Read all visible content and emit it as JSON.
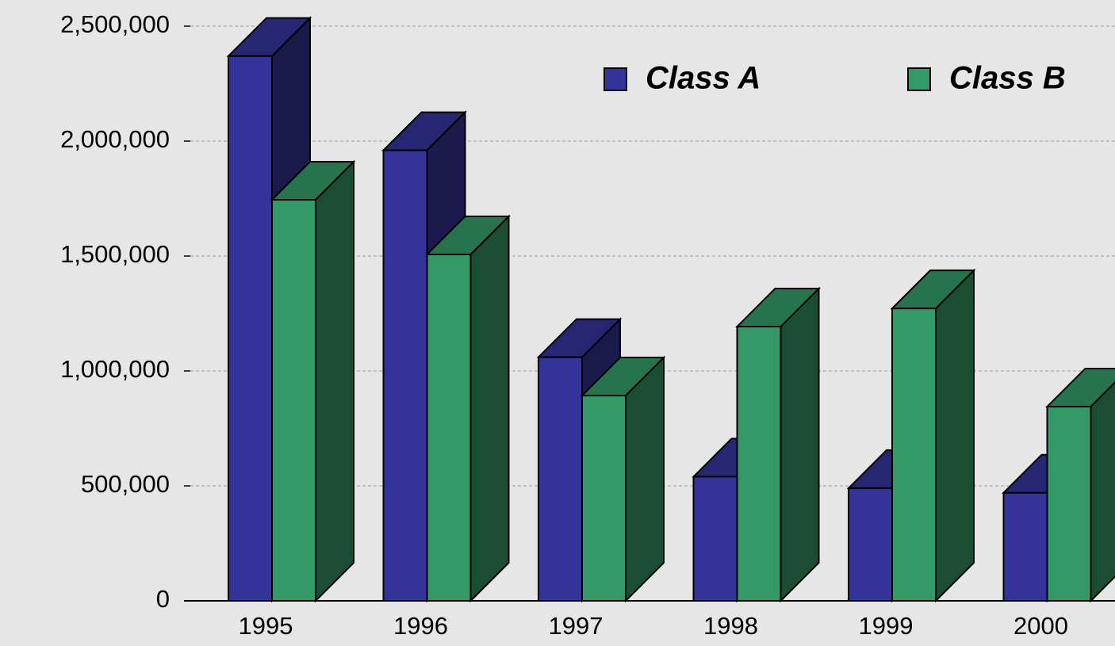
{
  "chart_data": {
    "type": "bar3d",
    "categories": [
      "1995",
      "1996",
      "1997",
      "1998",
      "1999",
      "2000"
    ],
    "series": [
      {
        "name": "Class A",
        "color": "#333399",
        "values": [
          2370000,
          1960000,
          1060000,
          540000,
          490000,
          470000
        ]
      },
      {
        "name": "Class B",
        "color": "#339966",
        "values": [
          1745000,
          1507000,
          893000,
          1193000,
          1272000,
          845000
        ]
      }
    ],
    "ylim": [
      0,
      2500000
    ],
    "yticks": [
      0,
      {
        "value": 500000,
        "label": "500,000"
      },
      {
        "value": 1000000,
        "label": "1,000,000"
      },
      {
        "value": 1500000,
        "label": "1,500,000"
      },
      {
        "value": 2000000,
        "label": "2,000,000"
      },
      {
        "value": 2500000,
        "label": "2,500,000"
      }
    ],
    "grid": true
  }
}
